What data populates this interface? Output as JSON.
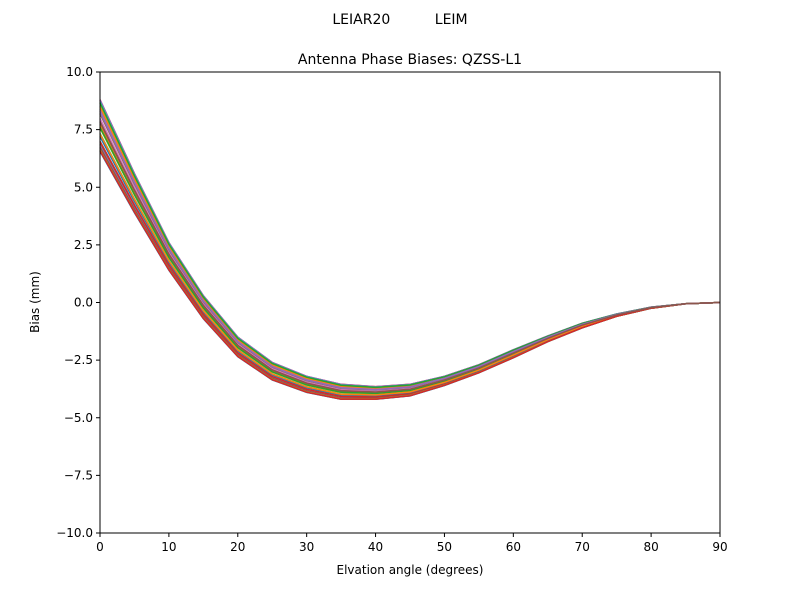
{
  "chart_data": {
    "type": "line",
    "suptitle": "LEIAR20          LEIM",
    "title": "Antenna Phase Biases: QZSS-L1",
    "xlabel": "Elvation angle (degrees)",
    "ylabel": "Bias (mm)",
    "xlim": [
      0,
      90
    ],
    "ylim": [
      -10,
      10
    ],
    "xticks": [
      0,
      10,
      20,
      30,
      40,
      50,
      60,
      70,
      80,
      90
    ],
    "yticks": [
      -10.0,
      -7.5,
      -5.0,
      -2.5,
      0.0,
      2.5,
      5.0,
      7.5,
      10.0
    ],
    "ytick_labels": [
      "−10.0",
      "−7.5",
      "−5.0",
      "−2.5",
      "0.0",
      "2.5",
      "5.0",
      "7.5",
      "10.0"
    ],
    "grid": false,
    "x": [
      0,
      5,
      10,
      15,
      20,
      25,
      30,
      35,
      40,
      45,
      50,
      55,
      60,
      65,
      70,
      75,
      80,
      85,
      90
    ],
    "envelope_upper": [
      8.8,
      5.6,
      2.6,
      0.3,
      -1.5,
      -2.6,
      -3.2,
      -3.55,
      -3.65,
      -3.55,
      -3.2,
      -2.7,
      -2.05,
      -1.45,
      -0.9,
      -0.5,
      -0.2,
      -0.05,
      0.0
    ],
    "envelope_lower": [
      6.55,
      3.9,
      1.4,
      -0.7,
      -2.35,
      -3.36,
      -3.9,
      -4.2,
      -4.2,
      -4.05,
      -3.6,
      -3.05,
      -2.4,
      -1.7,
      -1.1,
      -0.6,
      -0.25,
      -0.05,
      0.0
    ],
    "series_count": 36,
    "colors": [
      "#1f77b4",
      "#ff7f0e",
      "#2ca02c",
      "#d62728",
      "#9467bd",
      "#8c564b",
      "#e377c2",
      "#7f7f7f",
      "#bcbd22",
      "#17becf"
    ]
  }
}
